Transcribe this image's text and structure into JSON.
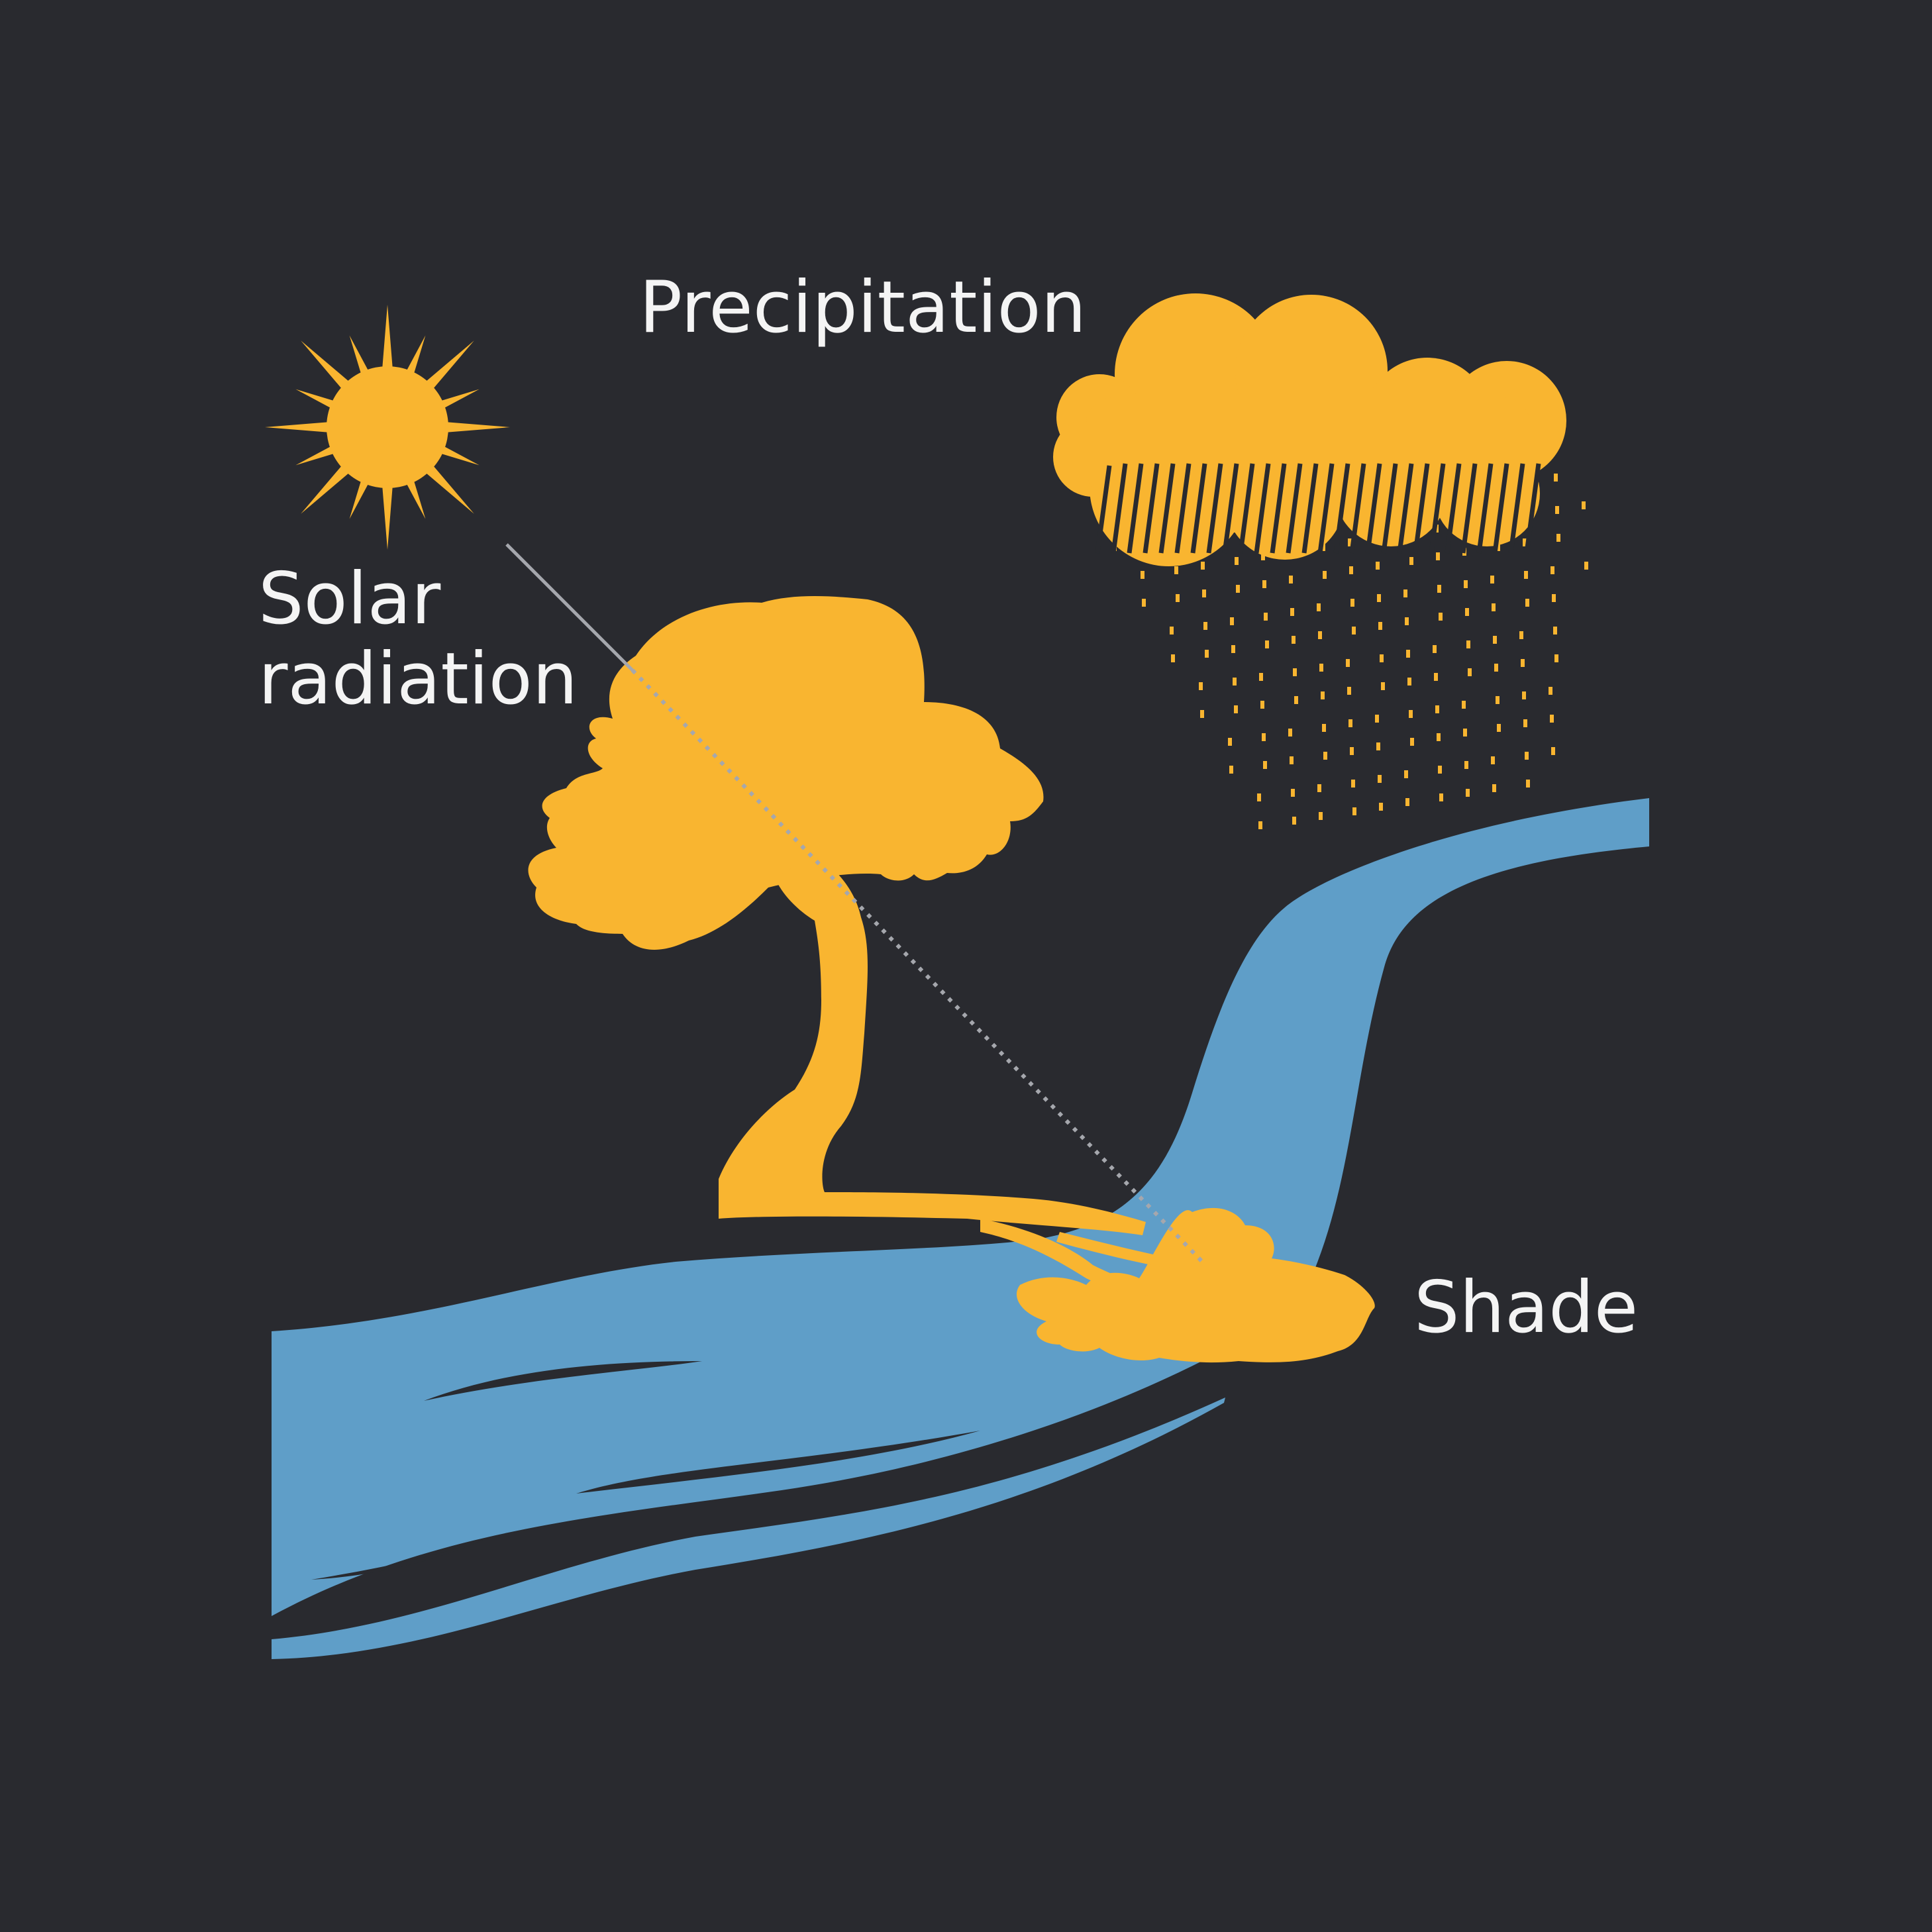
{
  "labels": {
    "precipitation": "Precipitation",
    "solar_line1": "Solar",
    "solar_line2": "radiation",
    "shade": "Shade"
  },
  "colors": {
    "background": "#292a2f",
    "accent": "#f9b530",
    "water": "#5f9ec8",
    "text": "#f4f4f4",
    "ray": "#a5a7ad"
  },
  "icons": [
    "sun-icon",
    "cloud-icon",
    "rain-drops",
    "tree-icon",
    "river-shape",
    "shade-patch"
  ]
}
